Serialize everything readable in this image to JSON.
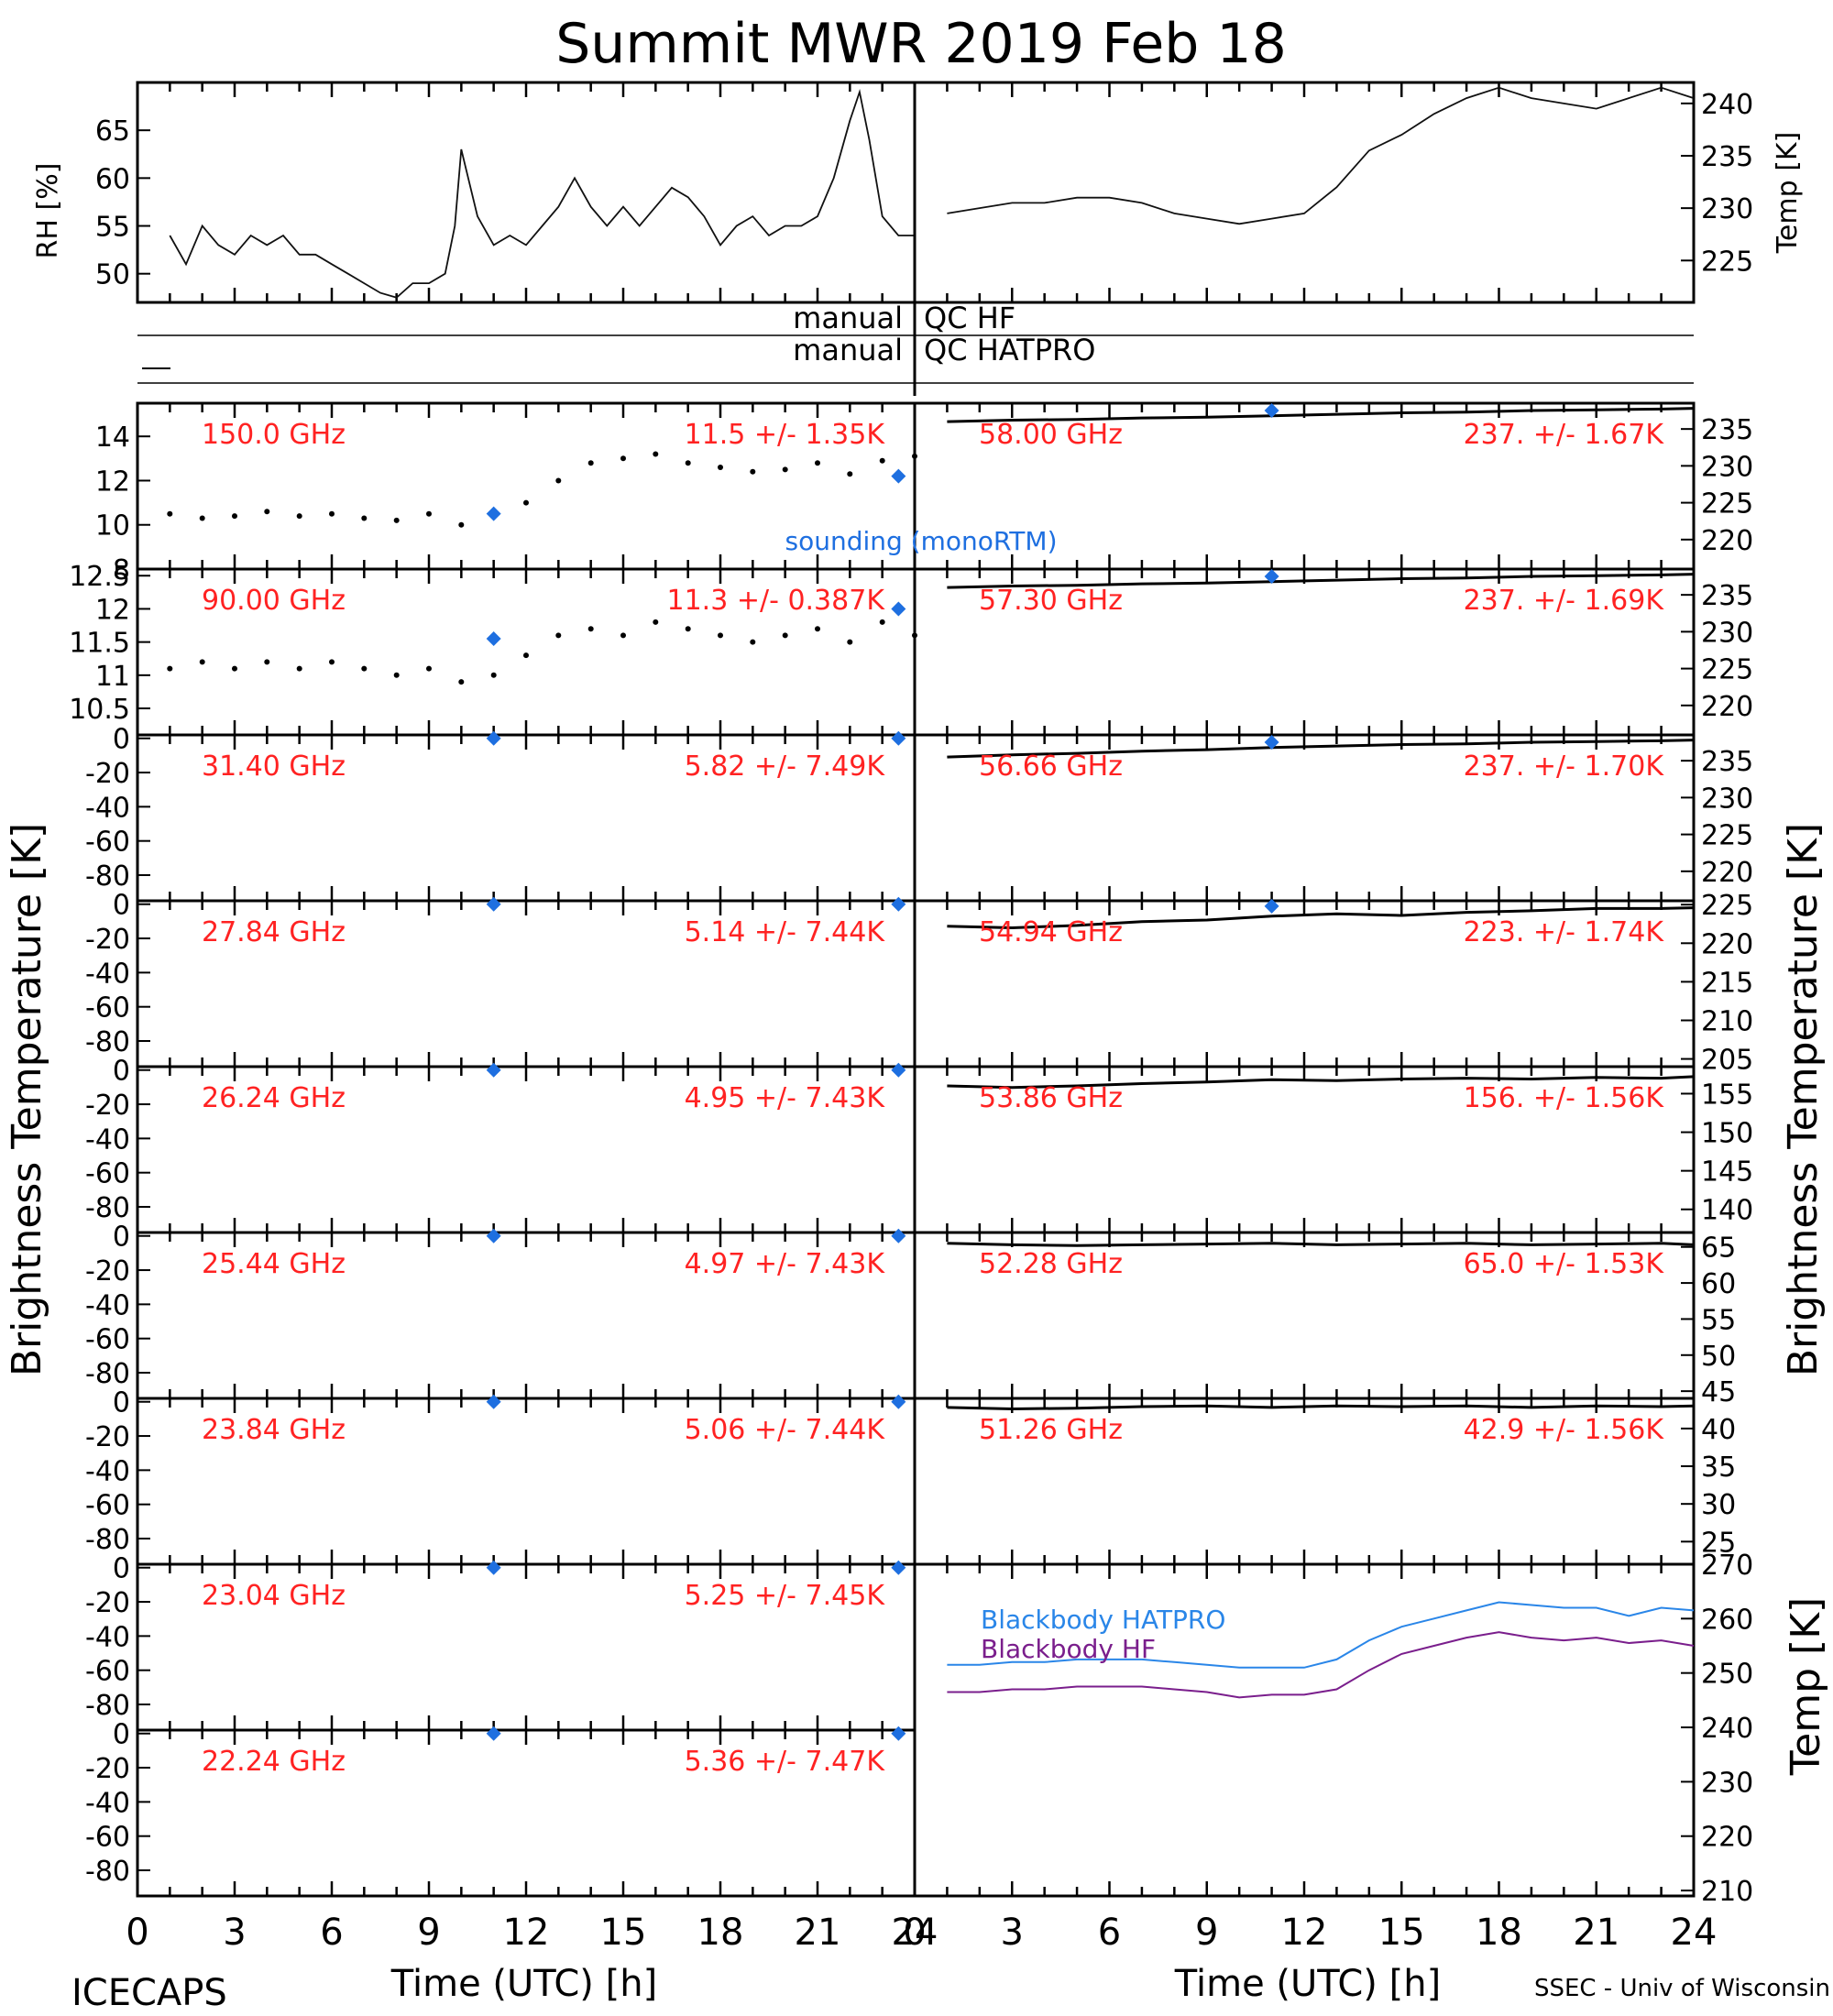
{
  "title": "Summit MWR 2019 Feb 18",
  "footer": {
    "left_label": "ICECAPS",
    "right_label": "SSEC - Univ of Wisconsin",
    "xlabel_left": "Time (UTC) [h]",
    "xlabel_right": "Time (UTC) [h]"
  },
  "axis_titles": {
    "rh": "RH [%]",
    "temp": "Temp [K]",
    "tb_left": "Brightness Temperature [K]",
    "tb_right": "Brightness Temperature [K]",
    "bb_temp": "Temp [K]"
  },
  "colors": {
    "axis": "#000000",
    "label": "#ff2222",
    "sounding": "#1e6fe0",
    "hatpro": "#2a86e8",
    "hf": "#7a1e8c"
  },
  "qc": {
    "left_word": "manual",
    "hf_label": "QC HF",
    "hatpro_label": "QC HATPRO"
  },
  "sounding_label": "sounding (monoRTM)",
  "chart_data": [
    {
      "id": "rh",
      "type": "line",
      "ylabel": "RH [%]",
      "xlim": [
        0,
        24
      ],
      "ylim": [
        47,
        70
      ],
      "yticks": [
        50,
        55,
        60,
        65
      ],
      "x": [
        1,
        1.5,
        2,
        2.5,
        3,
        3.5,
        4,
        4.5,
        5,
        5.5,
        6,
        6.5,
        7,
        7.5,
        8,
        8.5,
        9,
        9.5,
        9.8,
        10,
        10.5,
        11,
        11.5,
        12,
        12.5,
        13,
        13.5,
        14,
        14.5,
        15,
        15.5,
        16,
        16.5,
        17,
        17.5,
        18,
        18.5,
        19,
        19.5,
        20,
        20.5,
        21,
        21.5,
        22,
        22.3,
        22.6,
        23,
        23.5,
        24
      ],
      "y": [
        54,
        51,
        55,
        53,
        52,
        54,
        53,
        54,
        52,
        52,
        51,
        50,
        49,
        48,
        47.5,
        49,
        49,
        50,
        55,
        63,
        56,
        53,
        54,
        53,
        55,
        57,
        60,
        57,
        55,
        57,
        55,
        57,
        59,
        58,
        56,
        53,
        55,
        56,
        54,
        55,
        55,
        56,
        60,
        66,
        69,
        64,
        56,
        54,
        54
      ]
    },
    {
      "id": "temp",
      "type": "line",
      "ylabel": "Temp [K]",
      "xlim": [
        0,
        24
      ],
      "ylim": [
        221,
        242
      ],
      "yticks": [
        225,
        230,
        235,
        240
      ],
      "x": [
        1,
        2,
        3,
        4,
        5,
        6,
        7,
        8,
        9,
        10,
        11,
        12,
        13,
        14,
        15,
        16,
        17,
        18,
        19,
        20,
        21,
        22,
        23,
        24
      ],
      "y": [
        229.5,
        230,
        230.5,
        230.5,
        231,
        231,
        230.5,
        229.5,
        229,
        228.5,
        229,
        229.5,
        232,
        235.5,
        237,
        239,
        240.5,
        241.5,
        240.5,
        240,
        239.5,
        240.5,
        241.5,
        240.5
      ]
    },
    {
      "id": "ch-150-00",
      "side": "left",
      "type": "scatter",
      "frequency": "150.0 GHz",
      "stats": "11.5 +/- 1.35K",
      "ylim": [
        8,
        15.5
      ],
      "yticks": [
        8,
        10,
        12,
        14
      ],
      "x": [
        1,
        2,
        3,
        4,
        5,
        6,
        7,
        8,
        9,
        10,
        11,
        12,
        13,
        14,
        15,
        16,
        17,
        18,
        19,
        20,
        21,
        22,
        23,
        24
      ],
      "y": [
        10.5,
        10.3,
        10.4,
        10.6,
        10.4,
        10.5,
        10.3,
        10.2,
        10.5,
        10.0,
        10.4,
        11.0,
        12.0,
        12.8,
        13.0,
        13.2,
        12.8,
        12.6,
        12.4,
        12.5,
        12.8,
        12.3,
        12.9,
        13.1
      ],
      "sounding": [
        {
          "x": 11,
          "y": 10.5
        },
        {
          "x": 23.5,
          "y": 12.2
        }
      ]
    },
    {
      "id": "ch-90-00",
      "side": "left",
      "type": "scatter",
      "frequency": "90.00 GHz",
      "stats": "11.3 +/- 0.387K",
      "ylim": [
        10.1,
        12.6
      ],
      "yticks": [
        10.5,
        11.0,
        11.5,
        12.0,
        12.5
      ],
      "x": [
        1,
        2,
        3,
        4,
        5,
        6,
        7,
        8,
        9,
        10,
        11,
        12,
        13,
        14,
        15,
        16,
        17,
        18,
        19,
        20,
        21,
        22,
        23,
        24
      ],
      "y": [
        11.1,
        11.2,
        11.1,
        11.2,
        11.1,
        11.2,
        11.1,
        11.0,
        11.1,
        10.9,
        11.0,
        11.3,
        11.6,
        11.7,
        11.6,
        11.8,
        11.7,
        11.6,
        11.5,
        11.6,
        11.7,
        11.5,
        11.8,
        11.6
      ],
      "sounding": [
        {
          "x": 11,
          "y": 11.55
        },
        {
          "x": 23.5,
          "y": 12.0
        }
      ]
    },
    {
      "id": "ch-31-40",
      "side": "left",
      "type": "scatter",
      "frequency": "31.40 GHz",
      "stats": "5.82 +/- 7.49K",
      "ylim": [
        -95,
        2
      ],
      "yticks": [
        0,
        -20,
        -40,
        -60,
        -80
      ],
      "sounding": [
        {
          "x": 11,
          "y": 0
        },
        {
          "x": 23.5,
          "y": 0
        }
      ]
    },
    {
      "id": "ch-27-84",
      "side": "left",
      "type": "scatter",
      "frequency": "27.84 GHz",
      "stats": "5.14 +/- 7.44K",
      "ylim": [
        -95,
        2
      ],
      "yticks": [
        0,
        -20,
        -40,
        -60,
        -80
      ],
      "sounding": [
        {
          "x": 11,
          "y": 0
        },
        {
          "x": 23.5,
          "y": 0
        }
      ]
    },
    {
      "id": "ch-26-24",
      "side": "left",
      "type": "scatter",
      "frequency": "26.24 GHz",
      "stats": "4.95 +/- 7.43K",
      "ylim": [
        -95,
        2
      ],
      "yticks": [
        0,
        -20,
        -40,
        -60,
        -80
      ],
      "sounding": [
        {
          "x": 11,
          "y": 0
        },
        {
          "x": 23.5,
          "y": 0
        }
      ]
    },
    {
      "id": "ch-25-44",
      "side": "left",
      "type": "scatter",
      "frequency": "25.44 GHz",
      "stats": "4.97 +/- 7.43K",
      "ylim": [
        -95,
        2
      ],
      "yticks": [
        0,
        -20,
        -40,
        -60,
        -80
      ],
      "sounding": [
        {
          "x": 11,
          "y": 0
        },
        {
          "x": 23.5,
          "y": 0
        }
      ]
    },
    {
      "id": "ch-23-84",
      "side": "left",
      "type": "scatter",
      "frequency": "23.84 GHz",
      "stats": "5.06 +/- 7.44K",
      "ylim": [
        -95,
        2
      ],
      "yticks": [
        0,
        -20,
        -40,
        -60,
        -80
      ],
      "sounding": [
        {
          "x": 11,
          "y": 0
        },
        {
          "x": 23.5,
          "y": 0
        }
      ]
    },
    {
      "id": "ch-23-04",
      "side": "left",
      "type": "scatter",
      "frequency": "23.04 GHz",
      "stats": "5.25 +/- 7.45K",
      "ylim": [
        -95,
        2
      ],
      "yticks": [
        0,
        -20,
        -40,
        -60,
        -80
      ],
      "sounding": [
        {
          "x": 11,
          "y": 0
        },
        {
          "x": 23.5,
          "y": 0
        }
      ]
    },
    {
      "id": "ch-22-24",
      "side": "left",
      "type": "scatter",
      "frequency": "22.24 GHz",
      "stats": "5.36 +/- 7.47K",
      "ylim": [
        -95,
        2
      ],
      "yticks": [
        0,
        -20,
        -40,
        -60,
        -80
      ],
      "sounding": [
        {
          "x": 11,
          "y": 0
        },
        {
          "x": 23.5,
          "y": 0
        }
      ]
    },
    {
      "id": "ch-58-00",
      "side": "right",
      "type": "line",
      "frequency": "58.00 GHz",
      "stats": "237. +/- 1.67K",
      "ylim": [
        216,
        238.5
      ],
      "yticks": [
        220,
        225,
        230,
        235
      ],
      "x": [
        1,
        3,
        5,
        7,
        9,
        11,
        13,
        15,
        17,
        19,
        21,
        23,
        24
      ],
      "y": [
        236,
        236.2,
        236.3,
        236.5,
        236.6,
        236.8,
        237,
        237.2,
        237.3,
        237.5,
        237.6,
        237.7,
        237.8
      ],
      "sounding": [
        {
          "x": 11,
          "y": 237.5
        }
      ]
    },
    {
      "id": "ch-57-30",
      "side": "right",
      "type": "line",
      "frequency": "57.30 GHz",
      "stats": "237. +/- 1.69K",
      "ylim": [
        216,
        238.5
      ],
      "yticks": [
        220,
        225,
        230,
        235
      ],
      "x": [
        1,
        3,
        5,
        7,
        9,
        11,
        13,
        15,
        17,
        19,
        21,
        23,
        24
      ],
      "y": [
        236,
        236.2,
        236.3,
        236.5,
        236.6,
        236.8,
        237,
        237.2,
        237.3,
        237.5,
        237.6,
        237.7,
        237.8
      ],
      "sounding": [
        {
          "x": 11,
          "y": 237.5
        }
      ]
    },
    {
      "id": "ch-56-66",
      "side": "right",
      "type": "line",
      "frequency": "56.66 GHz",
      "stats": "237. +/- 1.70K",
      "ylim": [
        216,
        238.5
      ],
      "yticks": [
        220,
        225,
        230,
        235
      ],
      "x": [
        1,
        3,
        5,
        7,
        9,
        11,
        13,
        15,
        17,
        19,
        21,
        23,
        24
      ],
      "y": [
        235.5,
        235.8,
        236.0,
        236.3,
        236.5,
        236.8,
        237.0,
        237.2,
        237.3,
        237.5,
        237.6,
        237.7,
        237.8
      ],
      "sounding": [
        {
          "x": 11,
          "y": 237.5
        }
      ]
    },
    {
      "id": "ch-54-94",
      "side": "right",
      "type": "line",
      "frequency": "54.94 GHz",
      "stats": "223. +/- 1.74K",
      "ylim": [
        204,
        225.5
      ],
      "yticks": [
        205,
        210,
        215,
        220,
        225
      ],
      "x": [
        1,
        3,
        5,
        7,
        9,
        11,
        13,
        15,
        17,
        19,
        21,
        23,
        24
      ],
      "y": [
        222.2,
        222.0,
        222.3,
        222.8,
        223.0,
        223.5,
        223.8,
        223.6,
        224.0,
        224.2,
        224.5,
        224.5,
        224.6
      ],
      "sounding": [
        {
          "x": 11,
          "y": 224.8
        }
      ]
    },
    {
      "id": "ch-53-86",
      "side": "right",
      "type": "line",
      "frequency": "53.86 GHz",
      "stats": "156. +/- 1.56K",
      "ylim": [
        137,
        158.5
      ],
      "yticks": [
        140,
        145,
        150,
        155
      ],
      "x": [
        1,
        3,
        5,
        7,
        9,
        11,
        13,
        15,
        17,
        19,
        21,
        23,
        24
      ],
      "y": [
        156.0,
        155.8,
        156.0,
        156.3,
        156.5,
        156.8,
        156.7,
        156.9,
        157.0,
        156.9,
        157.1,
        157.0,
        157.2
      ]
    },
    {
      "id": "ch-52-28",
      "side": "right",
      "type": "line",
      "frequency": "52.28 GHz",
      "stats": "65.0 +/- 1.53K",
      "ylim": [
        44,
        67
      ],
      "yticks": [
        45,
        50,
        55,
        60,
        65
      ],
      "x": [
        1,
        3,
        5,
        7,
        9,
        11,
        13,
        15,
        17,
        19,
        21,
        23,
        24
      ],
      "y": [
        65.5,
        65.3,
        65.2,
        65.3,
        65.4,
        65.5,
        65.3,
        65.4,
        65.5,
        65.3,
        65.4,
        65.5,
        65.3
      ]
    },
    {
      "id": "ch-51-26",
      "side": "right",
      "type": "line",
      "frequency": "51.26 GHz",
      "stats": "42.9 +/- 1.56K",
      "ylim": [
        22,
        44
      ],
      "yticks": [
        25,
        30,
        35,
        40
      ],
      "x": [
        1,
        3,
        5,
        7,
        9,
        11,
        13,
        15,
        17,
        19,
        21,
        23,
        24
      ],
      "y": [
        42.8,
        42.6,
        42.7,
        42.9,
        43.0,
        42.8,
        43.0,
        42.9,
        43.0,
        42.8,
        43.0,
        42.9,
        43.0
      ]
    },
    {
      "id": "blackbody",
      "type": "line",
      "ylabel": "Temp [K]",
      "xlim": [
        0,
        24
      ],
      "ylim": [
        209,
        270
      ],
      "yticks": [
        210,
        220,
        230,
        240,
        250,
        260,
        270
      ],
      "series": [
        {
          "name": "Blackbody HATPRO",
          "x": [
            1,
            2,
            3,
            4,
            5,
            6,
            7,
            8,
            9,
            10,
            11,
            12,
            13,
            14,
            15,
            16,
            17,
            18,
            19,
            20,
            21,
            22,
            23,
            24
          ],
          "y": [
            251.5,
            251.5,
            252,
            252,
            252.5,
            252.5,
            252.5,
            252,
            251.5,
            251,
            251,
            251,
            252.5,
            256,
            258.5,
            260,
            261.5,
            263,
            262.5,
            262,
            262,
            260.5,
            262,
            261.5
          ]
        },
        {
          "name": "Blackbody HF",
          "x": [
            1,
            2,
            3,
            4,
            5,
            6,
            7,
            8,
            9,
            10,
            11,
            12,
            13,
            14,
            15,
            16,
            17,
            18,
            19,
            20,
            21,
            22,
            23,
            24
          ],
          "y": [
            246.5,
            246.5,
            247,
            247,
            247.5,
            247.5,
            247.5,
            247,
            246.5,
            245.5,
            246,
            246,
            247,
            250.5,
            253.5,
            255,
            256.5,
            257.5,
            256.5,
            256,
            256.5,
            255.5,
            256,
            255
          ]
        }
      ]
    }
  ],
  "xticks": [
    0,
    3,
    6,
    9,
    12,
    15,
    18,
    21,
    24
  ]
}
